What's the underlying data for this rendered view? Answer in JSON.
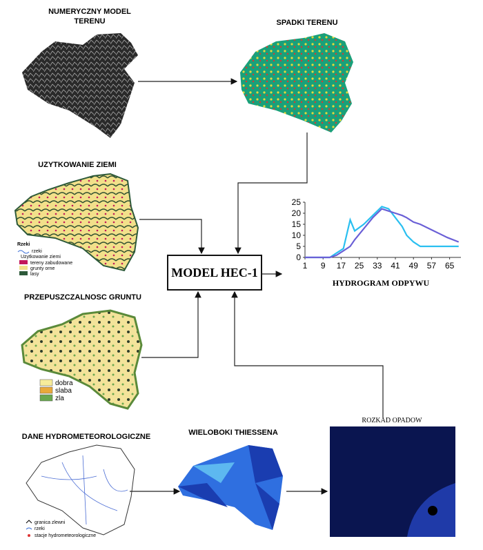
{
  "panels": {
    "nmt": {
      "title_lines": [
        "NUMERYCZNY MODEL",
        "TERENU"
      ]
    },
    "spadki": {
      "title": "SPADKI TERENU"
    },
    "uzytkowanie": {
      "title": "UZYTKOWANIE ZIEMI",
      "legend": [
        "Rzeki",
        "rzeki",
        "Uzytkowanie ziemi",
        "tereny zabudowane",
        "grunty orne",
        "lasy"
      ]
    },
    "przepuszczalnosc": {
      "title": "PRZEPUSZCZALNOSC GRUNTU",
      "legend": [
        "dobra",
        "slaba",
        "zla"
      ]
    },
    "model": {
      "title": "MODEL HEC-1"
    },
    "dane": {
      "title": "DANE HYDROMETEOROLOGICZNE",
      "legend": [
        "granica zlewni",
        "rzeki",
        "stacje hydrometeorologiczne"
      ]
    },
    "thiessen": {
      "title": "WIELOBOKI THIESSENA"
    },
    "opady": {
      "title": "ROZKAD OPADOW"
    }
  },
  "chart_data": {
    "type": "line",
    "title": "HYDROGRAM ODPYWU",
    "x": [
      1,
      5,
      9,
      12,
      15,
      18,
      21,
      23,
      27,
      31,
      35,
      38,
      41,
      44,
      46,
      49,
      52,
      58,
      64,
      69
    ],
    "series": [
      {
        "color": "#29bff0",
        "values": [
          0,
          0,
          0,
          0,
          2,
          4,
          17,
          12,
          15,
          19,
          23,
          22,
          18,
          14,
          10,
          7,
          5,
          5,
          5,
          5
        ]
      },
      {
        "color": "#6a5fd6",
        "values": [
          0,
          0,
          0,
          0,
          1,
          3,
          5,
          8,
          13,
          18,
          22,
          21,
          20,
          19,
          18,
          16,
          15,
          12,
          9,
          7
        ]
      }
    ],
    "xlim": [
      1,
      70
    ],
    "ylim": [
      0,
      25
    ],
    "xticks": [
      1,
      9,
      17,
      25,
      33,
      41,
      49,
      57,
      65
    ],
    "yticks": [
      0,
      5,
      10,
      15,
      20,
      25
    ]
  }
}
